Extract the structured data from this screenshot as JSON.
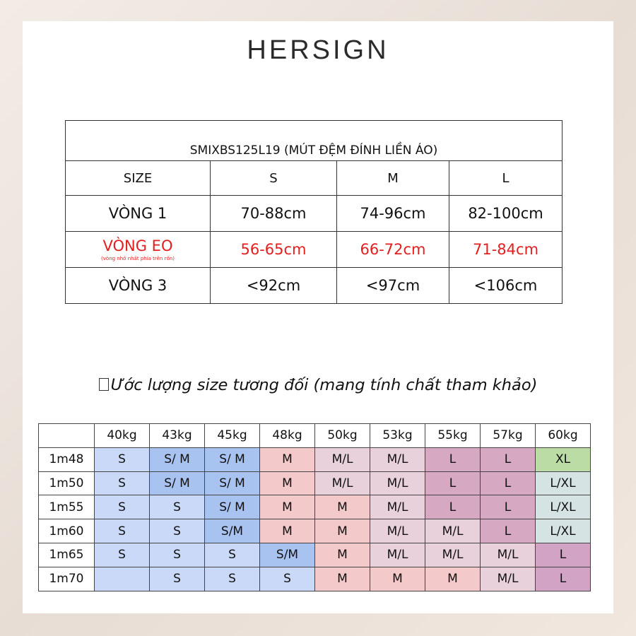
{
  "brand": "HERSIGN",
  "size_table": {
    "title": "SMIXBS125L19 (MÚT ĐỆM ĐÍNH LIỀN ÁO)",
    "header": [
      "SIZE",
      "S",
      "M",
      "L"
    ],
    "rows": [
      {
        "label": "VÒNG 1",
        "sub": "",
        "values": [
          "70-88cm",
          "74-96cm",
          "82-100cm"
        ]
      },
      {
        "label": "VÒNG EO",
        "sub": "(vòng nhỏ nhất phía trên rốn)",
        "values": [
          "56-65cm",
          "66-72cm",
          "71-84cm"
        ]
      },
      {
        "label": "VÒNG 3",
        "sub": "",
        "values": [
          "<92cm",
          "<97cm",
          "<106cm"
        ]
      }
    ],
    "highlight_color": "#e41e1e"
  },
  "note": "Ước lượng size tương đối (mang tính chất tham khảo)",
  "grid": {
    "weights": [
      "40kg",
      "43kg",
      "45kg",
      "48kg",
      "50kg",
      "53kg",
      "55kg",
      "57kg",
      "60kg"
    ],
    "heights": [
      "1m48",
      "1m50",
      "1m55",
      "1m60",
      "1m65",
      "1m70"
    ],
    "cells": [
      [
        "S",
        "S/ M",
        "S/ M",
        "M",
        "M/L",
        "M/L",
        "L",
        "L",
        "XL"
      ],
      [
        "S",
        "S/ M",
        "S/ M",
        "M",
        "M/L",
        "M/L",
        "L",
        "L",
        "L/XL"
      ],
      [
        "S",
        "S",
        "S/ M",
        "M",
        "M",
        "M/L",
        "L",
        "L",
        "L/XL"
      ],
      [
        "S",
        "S",
        "S/M",
        "M",
        "M",
        "M/L",
        "M/L",
        "L",
        "L/XL"
      ],
      [
        "S",
        "S",
        "S",
        "S/M",
        "M",
        "M/L",
        "M/L",
        "M/L",
        "L"
      ],
      [
        "",
        "S",
        "S",
        "S",
        "M",
        "M",
        "M",
        "M/L",
        "L"
      ]
    ],
    "colors": [
      [
        "#c9d9f7",
        "#a9c3f0",
        "#a9c3f0",
        "#f3c9c9",
        "#e9d1dc",
        "#e9d1dc",
        "#d6a8c2",
        "#d6a8c2",
        "#bcdca6"
      ],
      [
        "#c9d9f7",
        "#a9c3f0",
        "#a9c3f0",
        "#f3c9c9",
        "#e9d1dc",
        "#e9d1dc",
        "#d6a8c2",
        "#d6a8c2",
        "#d5e3e3"
      ],
      [
        "#c9d9f7",
        "#c9d9f7",
        "#a9c3f0",
        "#f3c9c9",
        "#f3c9c9",
        "#e9d1dc",
        "#d6a8c2",
        "#d6a8c2",
        "#d5e3e3"
      ],
      [
        "#c9d9f7",
        "#c9d9f7",
        "#a9c3f0",
        "#f3c9c9",
        "#f3c9c9",
        "#e9d1dc",
        "#e9d1dc",
        "#d6a8c2",
        "#d5e3e3"
      ],
      [
        "#c9d9f7",
        "#c9d9f7",
        "#c9d9f7",
        "#a9c3f0",
        "#f3c9c9",
        "#e9d1dc",
        "#e9d1dc",
        "#e9d1dc",
        "#d2a3c5"
      ],
      [
        "#c9d9f7",
        "#c9d9f7",
        "#c9d9f7",
        "#c9d9f7",
        "#f3c9c9",
        "#f3c9c9",
        "#f3c9c9",
        "#e9d1dc",
        "#d2a3c5"
      ]
    ]
  }
}
